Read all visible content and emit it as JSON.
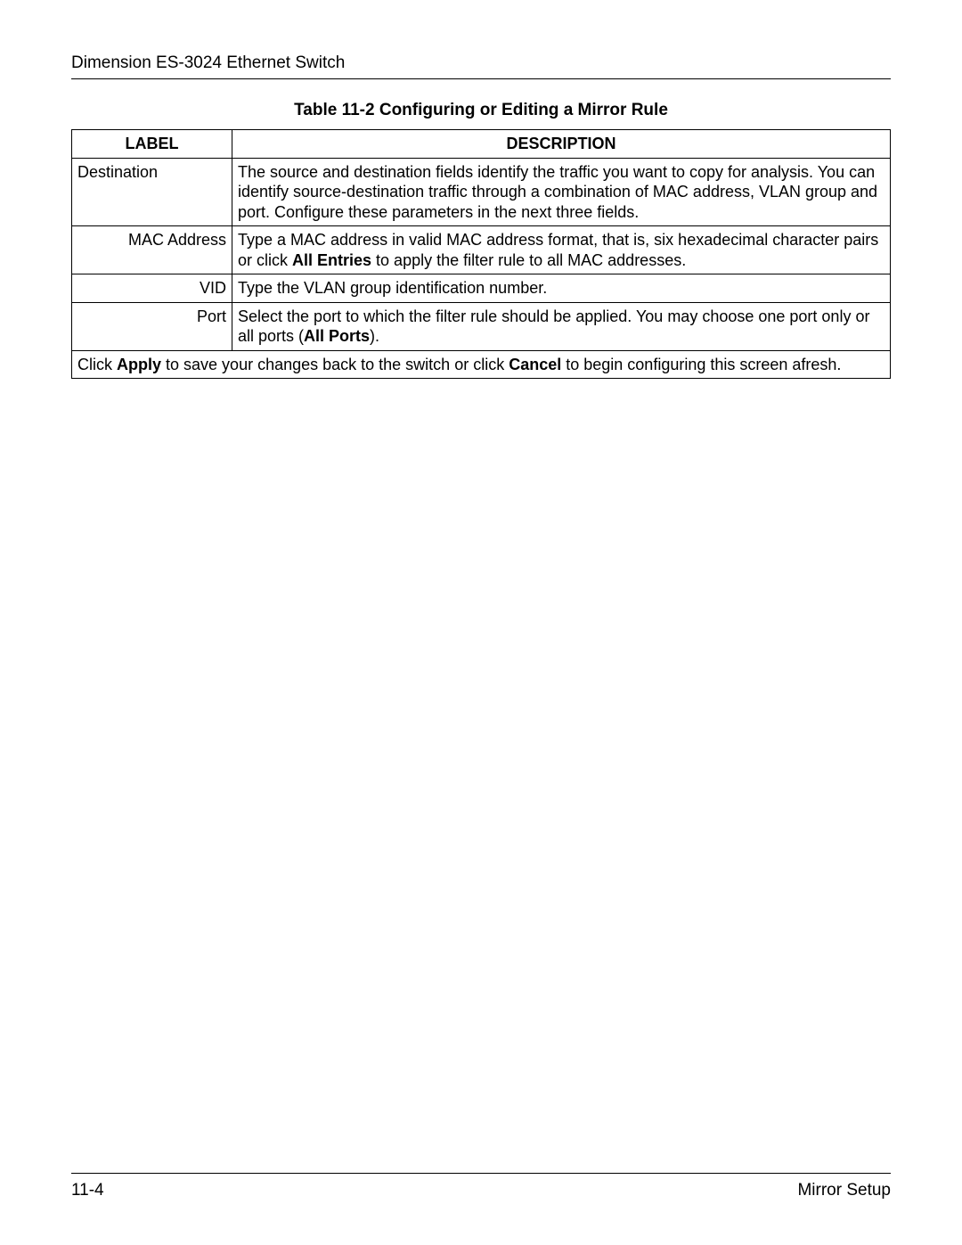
{
  "header": {
    "title": "Dimension ES-3024 Ethernet Switch"
  },
  "table": {
    "caption": "Table 11-2 Configuring or Editing a Mirror Rule",
    "head": {
      "label": "LABEL",
      "description": "DESCRIPTION"
    },
    "rows": {
      "destination": {
        "label": "Destination",
        "desc": "The source and destination fields identify the traffic you want to copy for analysis. You can identify source-destination traffic through a combination of MAC address, VLAN group and port. Configure these parameters in the next three fields."
      },
      "mac": {
        "label": "MAC Address",
        "desc_pre": "Type a MAC address in valid MAC address format, that is, six hexadecimal character pairs or click ",
        "desc_bold": "All Entries",
        "desc_post": " to apply the filter rule to all MAC addresses."
      },
      "vid": {
        "label": "VID",
        "desc": "Type the VLAN group identification number."
      },
      "port": {
        "label": "Port",
        "desc_pre": "Select the port to which the filter rule should be applied. You may choose one port only or all ports (",
        "desc_bold": "All Ports",
        "desc_post": ")."
      },
      "footer_row": {
        "pre1": "Click ",
        "b1": "Apply",
        "mid": " to save your changes back to the switch or click ",
        "b2": "Cancel",
        "post": " to begin configuring this screen afresh."
      }
    }
  },
  "footer": {
    "page": "11-4",
    "section": "Mirror Setup"
  }
}
